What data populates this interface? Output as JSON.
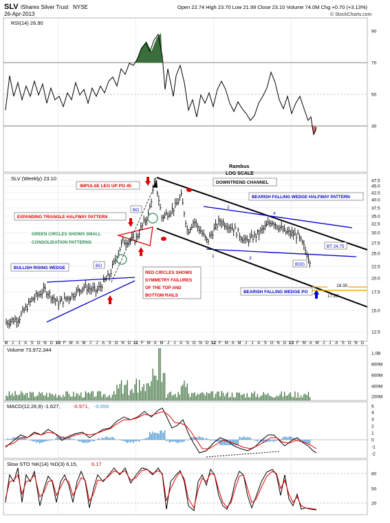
{
  "header": {
    "symbol": "SLV",
    "name": "iShares Silver Trust",
    "exchange": "NYSE",
    "date": "26-Apr-2013",
    "ohlc": "Open 22.74  High 23.70  Low 21.99  Close 23.10  Volume 74.0M  Chg +0.70 (+3.13%)",
    "watermark": "© StockCharts.com"
  },
  "colors": {
    "price": "#000000",
    "blue_line": "#0000cc",
    "red": "#dd0000",
    "green": "#2e8b57",
    "volume": "#3a6e3a",
    "macd_hist": "#3d8fd1",
    "orange": "#ff9900",
    "bg": "#ffffff"
  },
  "panels": {
    "rsi": {
      "label": "RSI(14) 26.90",
      "ticks": [
        "90",
        "70",
        "50",
        "30"
      ]
    },
    "price": {
      "label": "SLV (Weekly) 23.10",
      "ticks": [
        "47.5",
        "45.0",
        "42.5",
        "40.0",
        "37.5",
        "35.0",
        "32.5",
        "30.0",
        "27.5",
        "25.0",
        "22.5",
        "20.0",
        "17.5",
        "15.0",
        "12.5"
      ]
    },
    "volume": {
      "label": "Volume 73,972,344",
      "ticks": [
        "1.0B",
        "800M",
        "600M",
        "400M",
        "200M"
      ]
    },
    "macd": {
      "label_main": "MACD(12,26,9) -1.627,",
      "label_signal": "-0.971,",
      "label_hist": "-0.656",
      "ticks": [
        "5",
        "4",
        "3",
        "2",
        "1",
        "0",
        "-1",
        "-2"
      ]
    },
    "sto": {
      "label_main": "Slow STO %K(14) %D(3) 6.15,",
      "label_d": "6.17",
      "ticks": [
        "80",
        "50",
        "20"
      ]
    }
  },
  "x_axis": {
    "labels": [
      "M",
      "J",
      "J",
      "A",
      "S",
      "O",
      "N",
      "D",
      "10",
      "F",
      "M",
      "A",
      "M",
      "J",
      "J",
      "A",
      "S",
      "O",
      "N",
      "D",
      "11",
      "F",
      "M",
      "A",
      "M",
      "J",
      "J",
      "A",
      "S",
      "O",
      "N",
      "D",
      "12",
      "F",
      "M",
      "A",
      "M",
      "J",
      "J",
      "A",
      "S",
      "O",
      "N",
      "D",
      "13",
      "F",
      "M",
      "A",
      "M",
      "J",
      "J",
      "A",
      "S",
      "O",
      "N",
      "D"
    ]
  },
  "annotations": {
    "rambus": "Rambus",
    "log_scale": "LOG SCALE",
    "impulse": "IMPULSE LEG UP PO 45",
    "downtrend": "DOWNTREND CHANNEL",
    "bfw_halfway": "BEARISH FALLING WEDGE HALFWAY PATTERN",
    "expanding": "EXPANDING TRIANGLE HALFWAY PATTERN",
    "green_circles_1": "GREEN CIRCLES SHOWS SMALL",
    "green_circles_2": "CONSOLIDATION PATTERNS",
    "bullish_wedge": "BULLISH RISING WEDGE",
    "red_circles_1": "RED CIRCLES SHOWS",
    "red_circles_2": "SYMMETRY FAILURES",
    "red_circles_3": "OF THE TOP AND",
    "red_circles_4": "BOTTOM RAILS",
    "bt": "BT 24.75",
    "bog": "BOG",
    "bfw_po": "BEARISH FALLING WEDGE PO",
    "bo1": "BO",
    "bo2": "BO",
    "pt1": "1",
    "pt2": "2",
    "pt3": "3",
    "pt4": "4",
    "lvl1": "18.35",
    "lvl2": "17.80"
  },
  "chart_data": {
    "type": "line",
    "title": "SLV iShares Silver Trust NYSE (Weekly)",
    "x_range": [
      "2009-05",
      "2013-12"
    ],
    "y_scale": "log",
    "price_series_monthly_close": {
      "x": [
        "2009-05",
        "2009-07",
        "2009-09",
        "2009-11",
        "2010-01",
        "2010-03",
        "2010-05",
        "2010-07",
        "2010-09",
        "2010-11",
        "2011-01",
        "2011-03",
        "2011-04",
        "2011-05",
        "2011-07",
        "2011-08",
        "2011-09",
        "2011-10",
        "2011-12",
        "2012-02",
        "2012-04",
        "2012-06",
        "2012-08",
        "2012-10",
        "2012-12",
        "2013-02",
        "2013-04"
      ],
      "y": [
        13.5,
        14.0,
        16.5,
        18.0,
        16.0,
        17.0,
        18.5,
        17.8,
        20.5,
        27.5,
        28.0,
        35.0,
        47.0,
        34.0,
        37.0,
        41.0,
        30.0,
        33.0,
        27.5,
        33.0,
        31.0,
        27.5,
        29.5,
        33.0,
        30.0,
        29.0,
        23.1
      ]
    },
    "rsi_range": [
      10,
      100
    ],
    "price_range": [
      12,
      48
    ],
    "levels": [
      18.35,
      17.8,
      24.75
    ]
  }
}
